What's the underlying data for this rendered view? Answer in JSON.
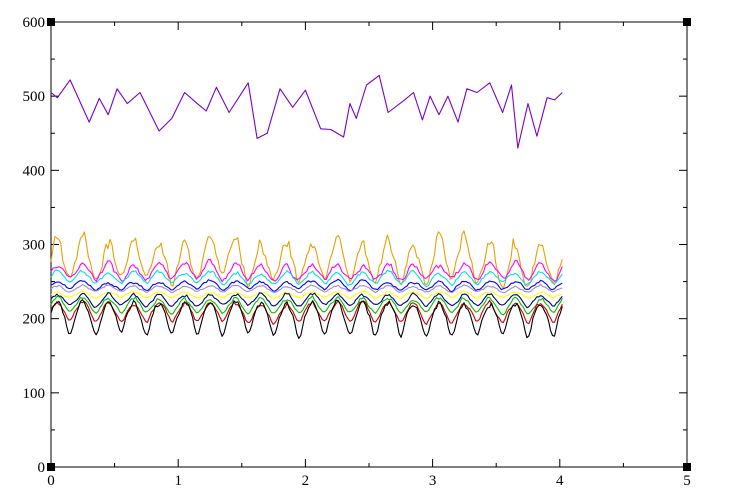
{
  "chart_data": {
    "type": "line",
    "title": "",
    "xlabel": "",
    "ylabel": "",
    "xlim": [
      0,
      5
    ],
    "ylim": [
      0,
      600
    ],
    "x_ticks": [
      "0",
      "1",
      "2",
      "3",
      "4",
      "5"
    ],
    "y_ticks": [
      "0",
      "100",
      "200",
      "300",
      "400",
      "500",
      "600"
    ],
    "grid": false,
    "legend": "none",
    "series": [
      {
        "color": "#7b00c8",
        "x_range": [
          0,
          4.02
        ],
        "mean": 490,
        "amplitude": 22,
        "period": 0.32,
        "noise": 16,
        "dip_depth": 0,
        "points": [
          [
            0,
            505
          ],
          [
            0.05,
            498
          ],
          [
            0.15,
            522
          ],
          [
            0.3,
            465
          ],
          [
            0.38,
            497
          ],
          [
            0.45,
            475
          ],
          [
            0.52,
            510
          ],
          [
            0.6,
            490
          ],
          [
            0.7,
            505
          ],
          [
            0.85,
            453
          ],
          [
            0.95,
            470
          ],
          [
            1.05,
            505
          ],
          [
            1.15,
            490
          ],
          [
            1.22,
            480
          ],
          [
            1.3,
            512
          ],
          [
            1.4,
            478
          ],
          [
            1.55,
            518
          ],
          [
            1.62,
            443
          ],
          [
            1.7,
            450
          ],
          [
            1.8,
            510
          ],
          [
            1.9,
            485
          ],
          [
            2.0,
            508
          ],
          [
            2.12,
            456
          ],
          [
            2.2,
            455
          ],
          [
            2.3,
            445
          ],
          [
            2.35,
            490
          ],
          [
            2.4,
            470
          ],
          [
            2.48,
            515
          ],
          [
            2.58,
            528
          ],
          [
            2.65,
            478
          ],
          [
            2.78,
            495
          ],
          [
            2.85,
            505
          ],
          [
            2.92,
            468
          ],
          [
            2.98,
            500
          ],
          [
            3.05,
            475
          ],
          [
            3.12,
            500
          ],
          [
            3.2,
            465
          ],
          [
            3.27,
            510
          ],
          [
            3.35,
            505
          ],
          [
            3.45,
            518
          ],
          [
            3.55,
            478
          ],
          [
            3.62,
            515
          ],
          [
            3.67,
            430
          ],
          [
            3.75,
            490
          ],
          [
            3.82,
            446
          ],
          [
            3.9,
            498
          ],
          [
            3.96,
            495
          ],
          [
            4.02,
            505
          ]
        ]
      },
      {
        "color": "#e8a000",
        "x_range": [
          0,
          4.02
        ],
        "mean": 275,
        "amplitude": 40,
        "period": 0.2,
        "noise": 12,
        "dip_depth": 25
      },
      {
        "color": "#ff00ff",
        "x_range": [
          0,
          4.02
        ],
        "mean": 262,
        "amplitude": 14,
        "period": 0.2,
        "noise": 6,
        "dip_depth": 10
      },
      {
        "color": "#00e0e0",
        "x_range": [
          0,
          4.02
        ],
        "mean": 255,
        "amplitude": 10,
        "period": 0.2,
        "noise": 4,
        "dip_depth": 8
      },
      {
        "color": "#0000ff",
        "x_range": [
          0,
          4.02
        ],
        "mean": 245,
        "amplitude": 6,
        "period": 0.2,
        "noise": 3,
        "dip_depth": 6
      },
      {
        "color": "#a08cc8",
        "x_range": [
          0,
          4.02
        ],
        "mean": 240,
        "amplitude": 5,
        "period": 0.2,
        "noise": 2,
        "dip_depth": 4
      },
      {
        "color": "#ffff00",
        "x_range": [
          0,
          4.02
        ],
        "mean": 232,
        "amplitude": 5,
        "period": 0.2,
        "noise": 2,
        "dip_depth": 4
      },
      {
        "color": "#000080",
        "x_range": [
          0,
          4.02
        ],
        "mean": 225,
        "amplitude": 10,
        "period": 0.2,
        "noise": 3,
        "dip_depth": 8
      },
      {
        "color": "#00c000",
        "x_range": [
          0,
          4.02
        ],
        "mean": 218,
        "amplitude": 12,
        "period": 0.2,
        "noise": 3,
        "dip_depth": 10
      },
      {
        "color": "#d00000",
        "x_range": [
          0,
          4.02
        ],
        "mean": 210,
        "amplitude": 14,
        "period": 0.2,
        "noise": 4,
        "dip_depth": 14
      },
      {
        "color": "#000000",
        "x_range": [
          0,
          4.02
        ],
        "mean": 205,
        "amplitude": 20,
        "period": 0.2,
        "noise": 5,
        "dip_depth": 28
      }
    ]
  }
}
